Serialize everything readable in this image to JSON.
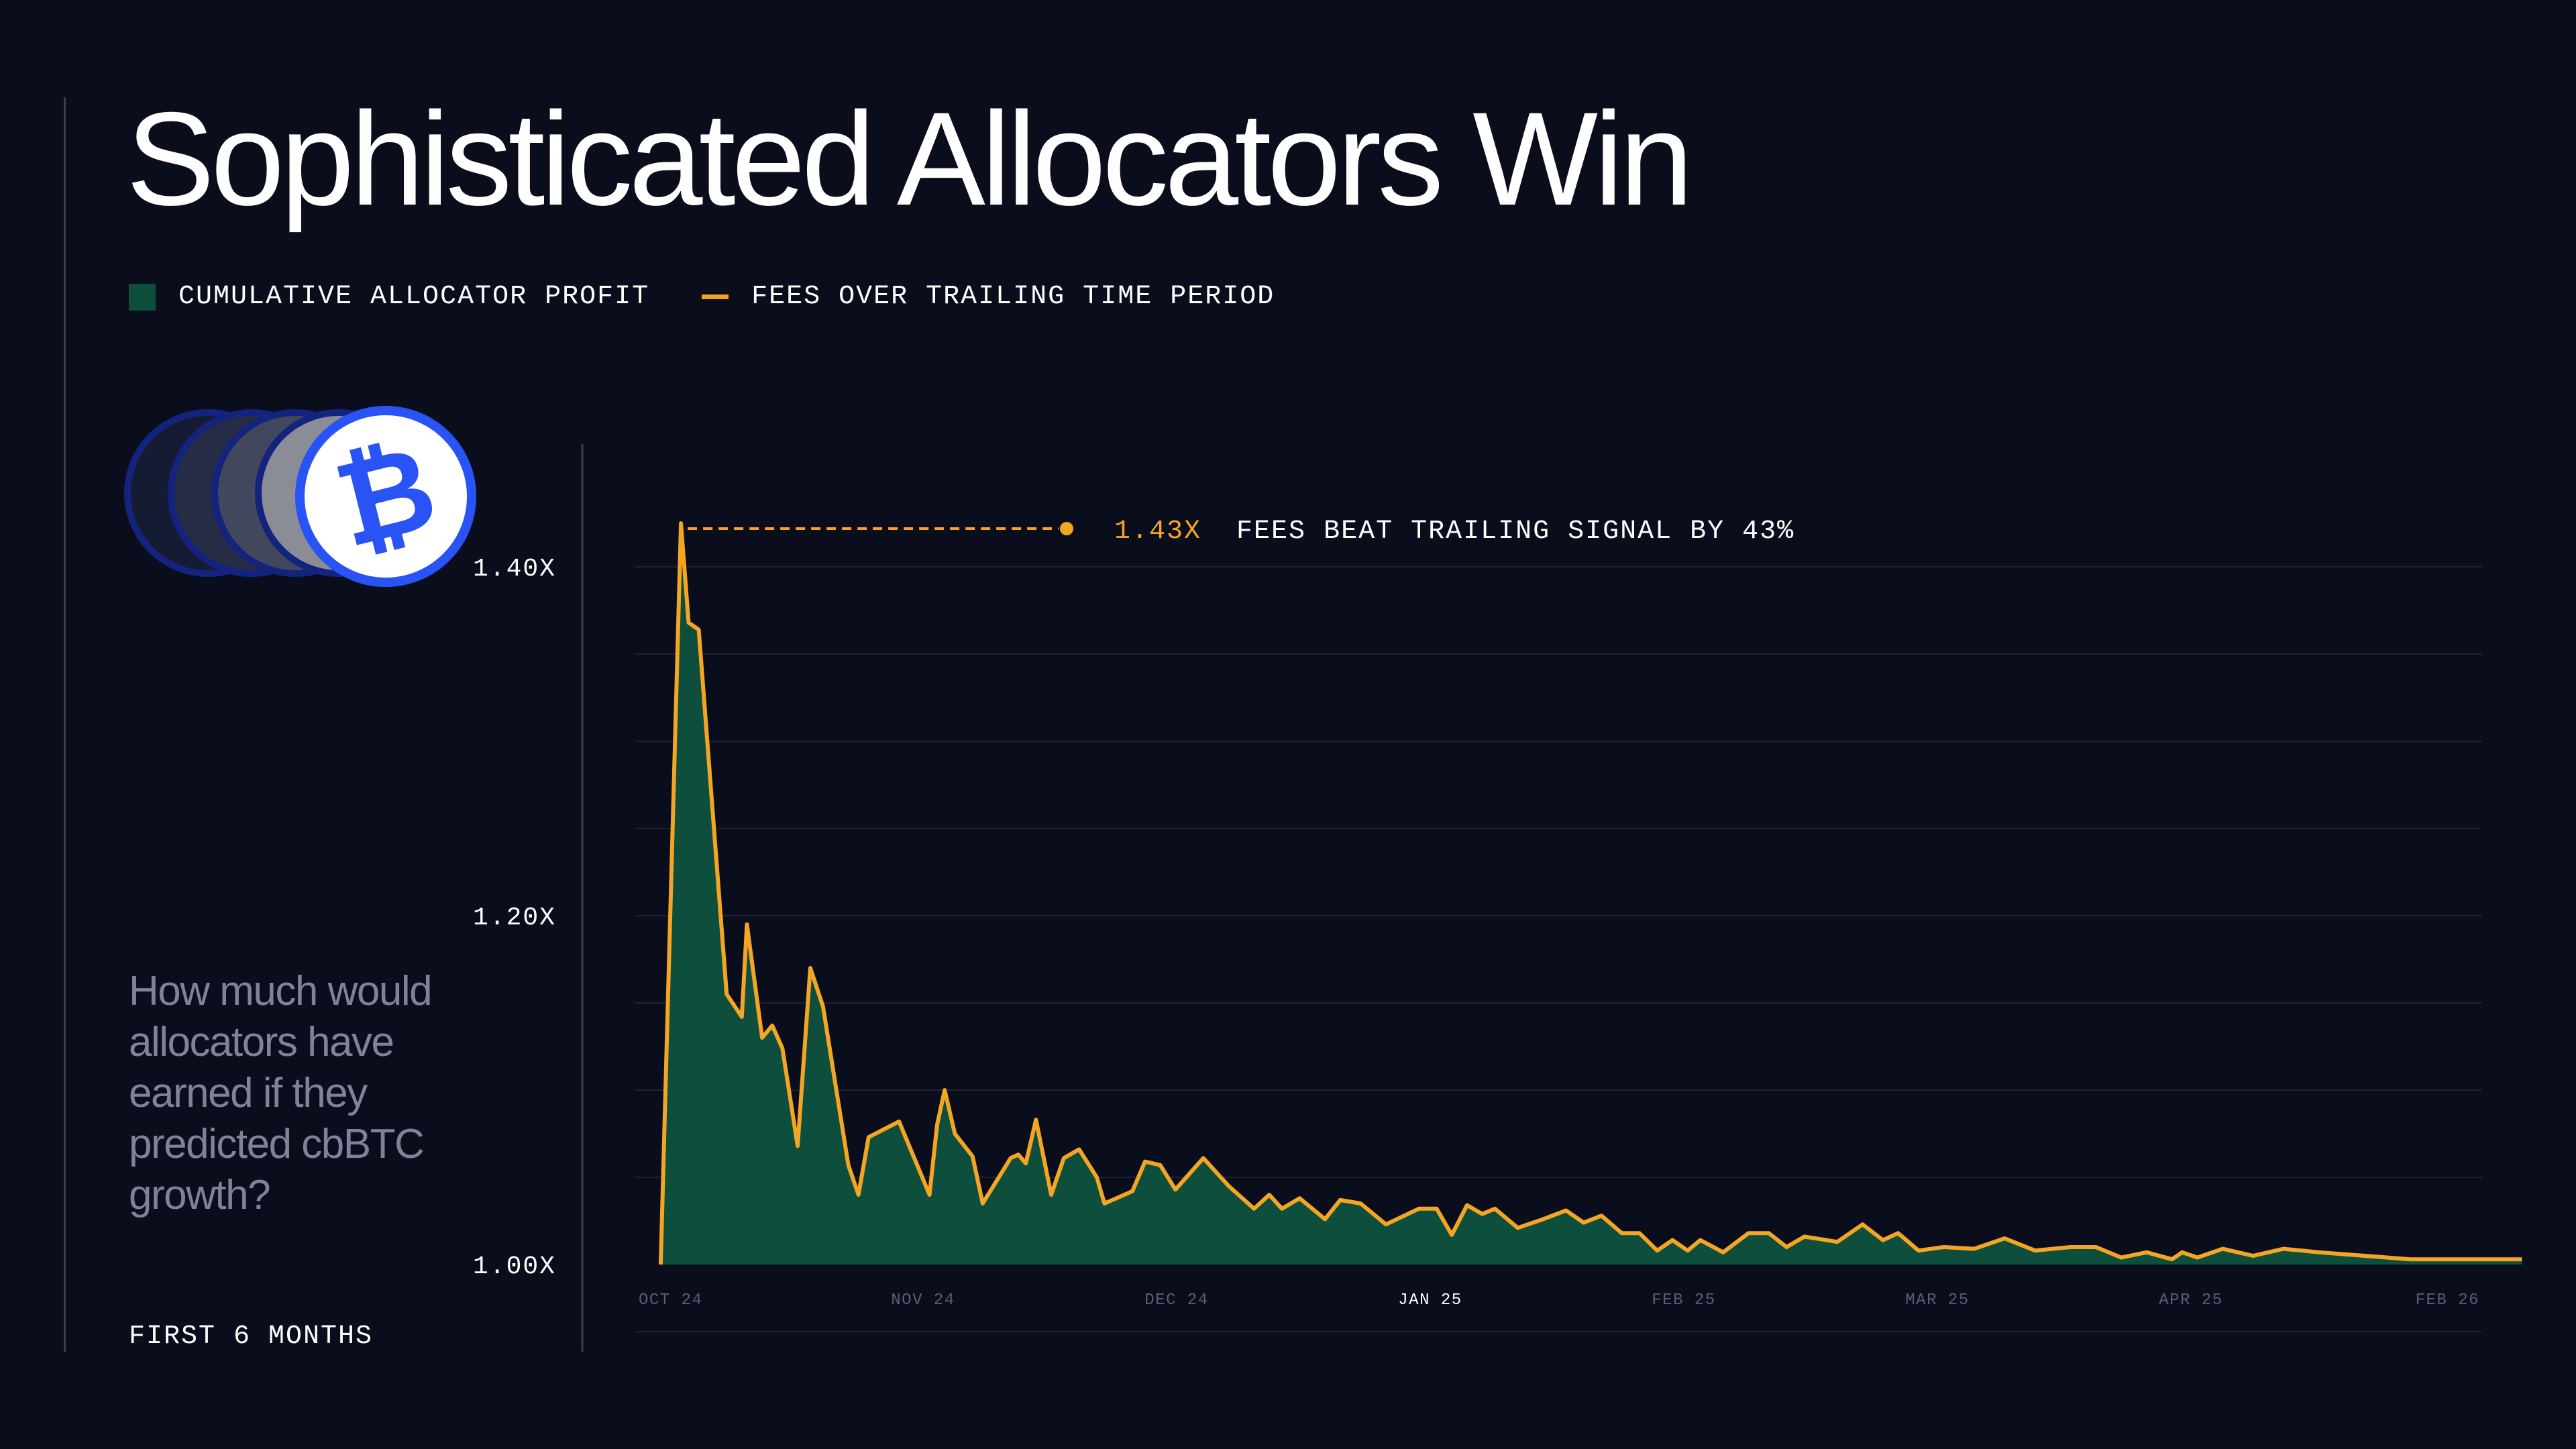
{
  "title": "Sophisticated Allocators Win",
  "legend": {
    "profit_label": "CUMULATIVE ALLOCATOR PROFIT",
    "fees_label": "FEES OVER TRAILING TIME PERIOD"
  },
  "colors": {
    "background": "#0a0d1c",
    "area_fill": "#0d4f3c",
    "fees_line": "#f5a524",
    "coin_blue": "#2a53f5"
  },
  "icons": {
    "coin": "bitcoin-coin-icon"
  },
  "coin_symbol": "₿",
  "question": "How much would allocators have earned if they predicted cbBTC growth?",
  "period_label": "FIRST 6 MONTHS",
  "annotation": {
    "value": "1.43X",
    "text": "FEES BEAT TRAILING SIGNAL BY 43%"
  },
  "chart_data": {
    "type": "area",
    "title": "",
    "xlabel": "",
    "ylabel": "",
    "ylim": [
      1.0,
      1.4
    ],
    "yticks": [
      {
        "value": 1.0,
        "label": "1.00X"
      },
      {
        "value": 1.2,
        "label": "1.20X"
      },
      {
        "value": 1.4,
        "label": "1.40X"
      }
    ],
    "gridlines": [
      1.05,
      1.1,
      1.15,
      1.2,
      1.25,
      1.3,
      1.35,
      1.4
    ],
    "xlim": [
      0,
      7.3
    ],
    "xticks": [
      {
        "value": 0,
        "label": "OCT 24",
        "highlight": false
      },
      {
        "value": 1,
        "label": "NOV 24",
        "highlight": false
      },
      {
        "value": 2,
        "label": "DEC 24",
        "highlight": false
      },
      {
        "value": 3,
        "label": "JAN 25",
        "highlight": true
      },
      {
        "value": 4,
        "label": "FEB 25",
        "highlight": false
      },
      {
        "value": 5,
        "label": "MAR 25",
        "highlight": false
      },
      {
        "value": 6,
        "label": "APR 25",
        "highlight": false
      },
      {
        "value": 7,
        "label": "FEB 26",
        "highlight": false
      }
    ],
    "grid": true,
    "series": [
      {
        "points": [
          [
            -0.04,
            1.0
          ],
          [
            0.04,
            1.425
          ],
          [
            0.07,
            1.368
          ],
          [
            0.11,
            1.364
          ],
          [
            0.22,
            1.155
          ],
          [
            0.28,
            1.142
          ],
          [
            0.3,
            1.195
          ],
          [
            0.36,
            1.13
          ],
          [
            0.4,
            1.137
          ],
          [
            0.44,
            1.124
          ],
          [
            0.5,
            1.068
          ],
          [
            0.55,
            1.17
          ],
          [
            0.6,
            1.148
          ],
          [
            0.7,
            1.057
          ],
          [
            0.74,
            1.04
          ],
          [
            0.78,
            1.073
          ],
          [
            0.9,
            1.082
          ],
          [
            1.02,
            1.04
          ],
          [
            1.05,
            1.08
          ],
          [
            1.08,
            1.1
          ],
          [
            1.12,
            1.075
          ],
          [
            1.19,
            1.062
          ],
          [
            1.23,
            1.035
          ],
          [
            1.34,
            1.061
          ],
          [
            1.37,
            1.063
          ],
          [
            1.4,
            1.058
          ],
          [
            1.44,
            1.083
          ],
          [
            1.5,
            1.04
          ],
          [
            1.55,
            1.061
          ],
          [
            1.61,
            1.066
          ],
          [
            1.68,
            1.05
          ],
          [
            1.71,
            1.035
          ],
          [
            1.82,
            1.042
          ],
          [
            1.87,
            1.059
          ],
          [
            1.93,
            1.057
          ],
          [
            1.99,
            1.043
          ],
          [
            2.1,
            1.061
          ],
          [
            2.2,
            1.045
          ],
          [
            2.3,
            1.032
          ],
          [
            2.36,
            1.04
          ],
          [
            2.41,
            1.032
          ],
          [
            2.48,
            1.038
          ],
          [
            2.58,
            1.026
          ],
          [
            2.64,
            1.037
          ],
          [
            2.72,
            1.035
          ],
          [
            2.82,
            1.023
          ],
          [
            2.95,
            1.032
          ],
          [
            3.02,
            1.032
          ],
          [
            3.08,
            1.017
          ],
          [
            3.14,
            1.034
          ],
          [
            3.2,
            1.029
          ],
          [
            3.25,
            1.032
          ],
          [
            3.34,
            1.021
          ],
          [
            3.44,
            1.026
          ],
          [
            3.53,
            1.031
          ],
          [
            3.6,
            1.024
          ],
          [
            3.67,
            1.028
          ],
          [
            3.75,
            1.018
          ],
          [
            3.82,
            1.018
          ],
          [
            3.89,
            1.008
          ],
          [
            3.95,
            1.014
          ],
          [
            4.01,
            1.008
          ],
          [
            4.06,
            1.014
          ],
          [
            4.15,
            1.007
          ],
          [
            4.25,
            1.018
          ],
          [
            4.33,
            1.018
          ],
          [
            4.4,
            1.01
          ],
          [
            4.47,
            1.016
          ],
          [
            4.6,
            1.013
          ],
          [
            4.7,
            1.023
          ],
          [
            4.78,
            1.014
          ],
          [
            4.84,
            1.018
          ],
          [
            4.92,
            1.008
          ],
          [
            5.02,
            1.01
          ],
          [
            5.14,
            1.009
          ],
          [
            5.26,
            1.015
          ],
          [
            5.38,
            1.008
          ],
          [
            5.52,
            1.01
          ],
          [
            5.62,
            1.01
          ],
          [
            5.72,
            1.004
          ],
          [
            5.82,
            1.007
          ],
          [
            5.92,
            1.003
          ],
          [
            5.96,
            1.007
          ],
          [
            6.02,
            1.004
          ],
          [
            6.12,
            1.009
          ],
          [
            6.24,
            1.005
          ],
          [
            6.36,
            1.009
          ],
          [
            6.5,
            1.007
          ],
          [
            6.68,
            1.005
          ],
          [
            6.86,
            1.003
          ],
          [
            7.0,
            1.003
          ],
          [
            7.15,
            1.003
          ],
          [
            7.3,
            1.003
          ]
        ]
      }
    ]
  }
}
